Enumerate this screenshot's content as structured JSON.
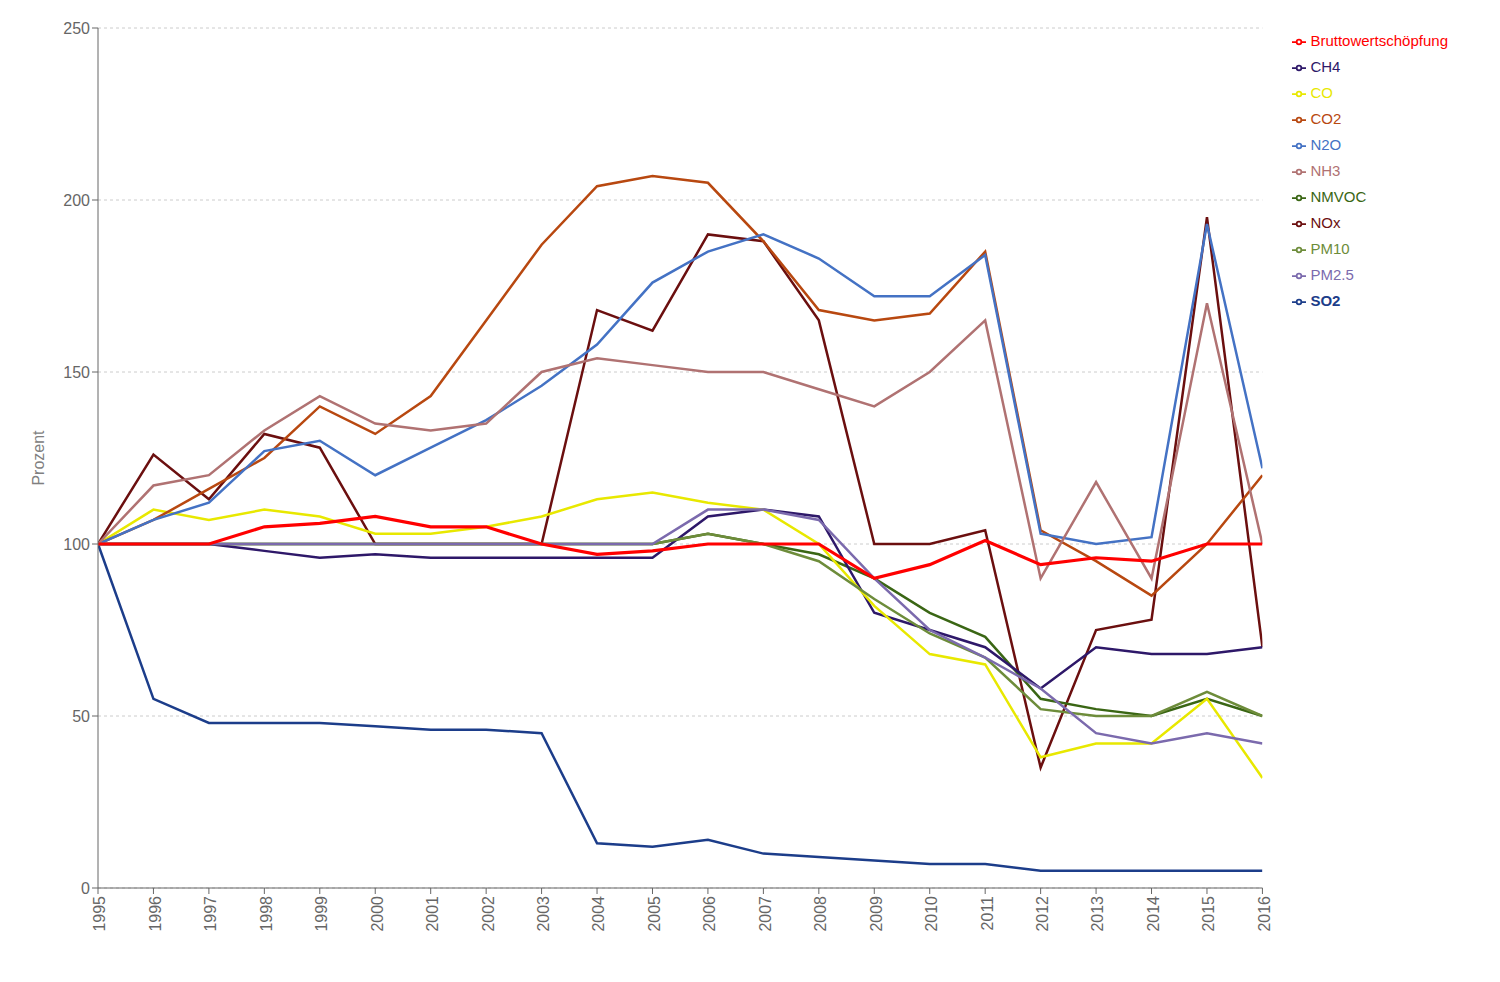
{
  "chart_data": {
    "type": "line",
    "x": [
      1995,
      1996,
      1997,
      1998,
      1999,
      2000,
      2001,
      2002,
      2003,
      2004,
      2005,
      2006,
      2007,
      2008,
      2009,
      2010,
      2011,
      2012,
      2013,
      2014,
      2015,
      2016
    ],
    "xlim": [
      1995,
      2016
    ],
    "xticks": [
      1995,
      1996,
      1997,
      1998,
      1999,
      2000,
      2001,
      2002,
      2003,
      2004,
      2005,
      2006,
      2007,
      2008,
      2009,
      2010,
      2011,
      2012,
      2013,
      2014,
      2015,
      2016
    ],
    "ylabel": "Prozent",
    "ylim": [
      0,
      250
    ],
    "yticks": [
      0,
      50,
      100,
      150,
      200,
      250
    ],
    "grid": true,
    "legend": "right",
    "series": [
      {
        "name": "SO2",
        "color": "#1c3d8a",
        "values": [
          100,
          55,
          48,
          48,
          48,
          47,
          46,
          46,
          45,
          13,
          12,
          14,
          10,
          9,
          8,
          7,
          7,
          5,
          5,
          5,
          5,
          5
        ]
      },
      {
        "name": "NOx",
        "color": "#6b0f0f",
        "values": [
          100,
          126,
          113,
          132,
          128,
          100,
          100,
          100,
          100,
          168,
          162,
          190,
          188,
          165,
          100,
          100,
          104,
          35,
          75,
          78,
          195,
          70
        ]
      },
      {
        "name": "NMVOC",
        "color": "#3a6614",
        "values": [
          100,
          100,
          100,
          100,
          100,
          100,
          100,
          100,
          100,
          100,
          100,
          103,
          100,
          97,
          90,
          80,
          73,
          55,
          52,
          50,
          55,
          50
        ]
      },
      {
        "name": "CH4",
        "color": "#2e1869",
        "values": [
          100,
          100,
          100,
          98,
          96,
          97,
          96,
          96,
          96,
          96,
          96,
          108,
          110,
          108,
          80,
          75,
          70,
          58,
          70,
          68,
          68,
          70
        ]
      },
      {
        "name": "CO",
        "color": "#e8e800",
        "values": [
          100,
          110,
          107,
          110,
          108,
          103,
          103,
          105,
          108,
          113,
          115,
          112,
          110,
          100,
          82,
          68,
          65,
          38,
          42,
          42,
          55,
          32
        ]
      },
      {
        "name": "CO2",
        "color": "#b84810",
        "values": [
          100,
          107,
          116,
          125,
          140,
          132,
          143,
          165,
          187,
          204,
          207,
          205,
          188,
          168,
          165,
          167,
          185,
          104,
          95,
          85,
          100,
          120
        ]
      },
      {
        "name": "N2O",
        "color": "#4472c4",
        "values": [
          100,
          107,
          112,
          127,
          130,
          120,
          128,
          136,
          146,
          158,
          176,
          185,
          190,
          183,
          172,
          172,
          184,
          103,
          100,
          102,
          193,
          122
        ]
      },
      {
        "name": "NH3",
        "color": "#b07272",
        "values": [
          100,
          117,
          120,
          133,
          143,
          135,
          133,
          135,
          150,
          154,
          152,
          150,
          150,
          145,
          140,
          150,
          165,
          90,
          118,
          90,
          170,
          100
        ]
      },
      {
        "name": "PM10",
        "color": "#6d8c3a",
        "values": [
          100,
          100,
          100,
          100,
          100,
          100,
          100,
          100,
          100,
          100,
          100,
          103,
          100,
          95,
          84,
          74,
          67,
          52,
          50,
          50,
          57,
          50
        ]
      },
      {
        "name": "PM2.5",
        "color": "#7b6aad",
        "values": [
          100,
          100,
          100,
          100,
          100,
          100,
          100,
          100,
          100,
          100,
          100,
          110,
          110,
          107,
          90,
          75,
          67,
          58,
          45,
          42,
          45,
          42
        ]
      },
      {
        "name": "Bruttowertschöpfung",
        "color": "#ff0000",
        "values": [
          100,
          100,
          100,
          105,
          106,
          108,
          105,
          105,
          100,
          97,
          98,
          100,
          100,
          100,
          90,
          94,
          101,
          94,
          96,
          95,
          100,
          100
        ]
      }
    ]
  }
}
